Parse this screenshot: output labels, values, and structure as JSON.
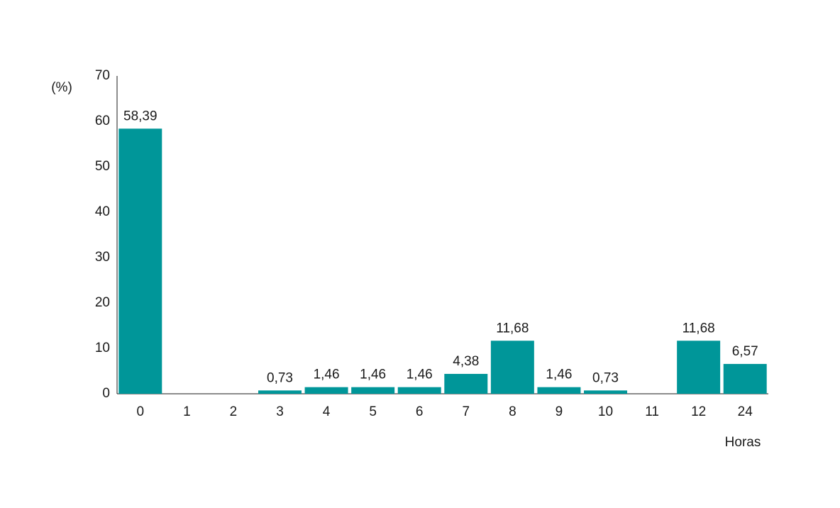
{
  "chart_data": {
    "type": "bar",
    "y_label": "(%)",
    "x_label": "Horas",
    "categories": [
      "0",
      "1",
      "2",
      "3",
      "4",
      "5",
      "6",
      "7",
      "8",
      "9",
      "10",
      "11",
      "12",
      "24"
    ],
    "values": [
      58.39,
      null,
      null,
      0.73,
      1.46,
      1.46,
      1.46,
      4.38,
      11.68,
      1.46,
      0.73,
      null,
      11.68,
      6.57
    ],
    "value_labels": [
      "58,39",
      null,
      null,
      "0,73",
      "1,46",
      "1,46",
      "1,46",
      "4,38",
      "11,68",
      "1,46",
      "0,73",
      null,
      "11,68",
      "6,57"
    ],
    "color": "#009699",
    "ylim": [
      0,
      70
    ],
    "yticks": [
      0,
      10,
      20,
      30,
      40,
      50,
      60,
      70
    ],
    "grid": false
  }
}
